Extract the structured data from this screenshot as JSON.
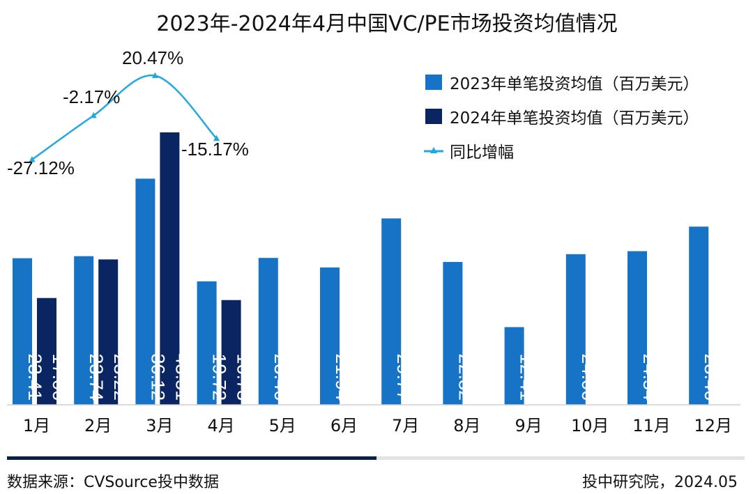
{
  "chart_data": {
    "type": "bar",
    "title": "2023年-2024年4月中国VC/PE市场投资均值情况",
    "categories": [
      "1月",
      "2月",
      "3月",
      "4月",
      "5月",
      "6月",
      "7月",
      "8月",
      "9月",
      "10月",
      "11月",
      "12月"
    ],
    "series": [
      {
        "name": "2023年单笔投资均值（百万美元）",
        "color": "#1673c6",
        "values": [
          23.41,
          23.74,
          36.12,
          19.72,
          23.46,
          21.94,
          29.77,
          22.82,
          12.41,
          24.06,
          24.54,
          28.46
        ]
      },
      {
        "name": "2024年单笔投资均值（百万美元）",
        "color": "#0b2563",
        "values": [
          17.06,
          23.22,
          43.51,
          16.73,
          null,
          null,
          null,
          null,
          null,
          null,
          null,
          null
        ]
      }
    ],
    "line_series": {
      "name": "同比增幅",
      "color": "#1fa8e3",
      "values": [
        -27.12,
        -2.17,
        20.47,
        -15.17
      ],
      "labels": [
        "-27.12%",
        "-2.17%",
        "20.47%",
        "-15.17%"
      ]
    },
    "ylim": [
      0,
      43.51
    ],
    "grid": false,
    "legend_position": "top-right"
  },
  "footer": {
    "source": "数据来源：CVSource投中数据",
    "credit": "投中研究院，2024.05"
  }
}
